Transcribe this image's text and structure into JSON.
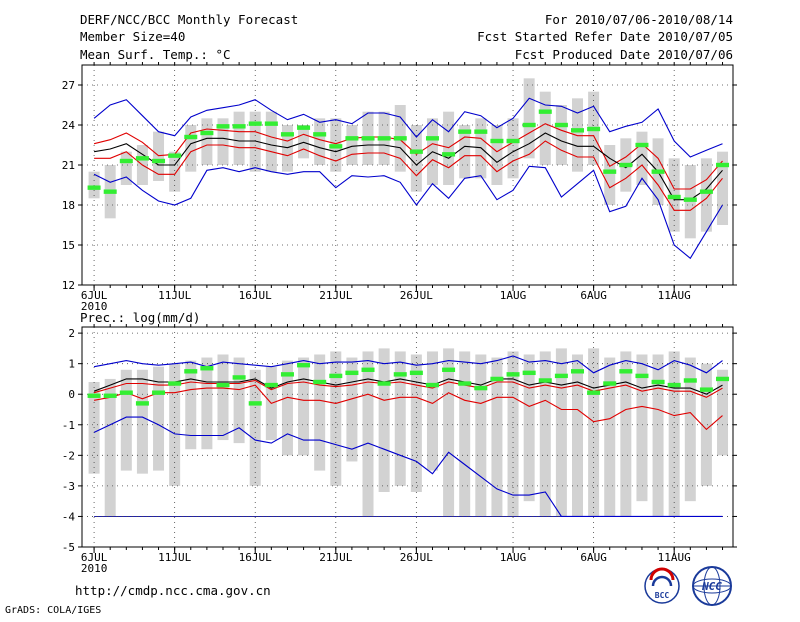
{
  "header": {
    "left": [
      "DERF/NCC/BCC Monthly Forecast",
      "Member Size=40",
      "Mean Surf. Temp.: °C"
    ],
    "right": [
      "For 2010/07/06-2010/08/14",
      "Fcst Started Refer Date 2010/07/05",
      "Fcst Produced Date 2010/07/06"
    ]
  },
  "footer": {
    "url": "http://cmdp.ncc.cma.gov.cn",
    "credit": "GrADS: COLA/IGES",
    "logo_left": "BCC",
    "logo_right": "NCC"
  },
  "colors": {
    "box": "#d2d2d2",
    "median": "#33ee33",
    "mean": "#000000",
    "inner": "#e00000",
    "outer": "#0000cc"
  },
  "chart_data": [
    {
      "type": "box",
      "title": "Mean Surf. Temp.: °C",
      "ylim": [
        12,
        28.5
      ],
      "yticks": [
        12,
        15,
        18,
        21,
        24,
        27
      ],
      "x": [
        "6JUL",
        "7JUL",
        "8JUL",
        "9JUL",
        "10JUL",
        "11JUL",
        "12JUL",
        "13JUL",
        "14JUL",
        "15JUL",
        "16JUL",
        "17JUL",
        "18JUL",
        "19JUL",
        "20JUL",
        "21JUL",
        "22JUL",
        "23JUL",
        "24JUL",
        "25JUL",
        "26JUL",
        "27JUL",
        "28JUL",
        "29JUL",
        "30JUL",
        "31JUL",
        "1AUG",
        "2AUG",
        "3AUG",
        "4AUG",
        "5AUG",
        "6AUG",
        "7AUG",
        "8AUG",
        "9AUG",
        "10AUG",
        "11AUG",
        "12AUG",
        "13AUG",
        "14AUG"
      ],
      "xtick_labels": [
        {
          "i": 0,
          "label": "6JUL",
          "sub": "2010"
        },
        {
          "i": 5,
          "label": "11JUL"
        },
        {
          "i": 10,
          "label": "16JUL"
        },
        {
          "i": 15,
          "label": "21JUL"
        },
        {
          "i": 20,
          "label": "26JUL"
        },
        {
          "i": 26,
          "label": "1AUG"
        },
        {
          "i": 31,
          "label": "6AUG"
        },
        {
          "i": 36,
          "label": "11AUG"
        }
      ],
      "box_low": [
        18.5,
        17.0,
        19.5,
        19.5,
        19.8,
        19.0,
        20.5,
        21.0,
        21.0,
        21.0,
        20.5,
        20.5,
        20.5,
        21.5,
        21.0,
        20.5,
        21.0,
        21.0,
        21.0,
        20.5,
        19.0,
        19.5,
        19.5,
        20.0,
        20.0,
        19.5,
        20.0,
        21.5,
        21.0,
        21.0,
        20.5,
        21.0,
        18.0,
        19.0,
        19.5,
        18.0,
        16.0,
        15.5,
        16.0,
        16.5
      ],
      "box_high": [
        20.5,
        21.0,
        22.0,
        22.5,
        23.5,
        22.0,
        24.0,
        24.5,
        24.5,
        25.0,
        25.0,
        25.0,
        24.0,
        24.0,
        24.5,
        24.5,
        24.0,
        25.0,
        25.0,
        25.5,
        24.0,
        24.5,
        25.0,
        24.0,
        24.5,
        24.0,
        24.5,
        27.5,
        26.5,
        25.5,
        26.0,
        26.5,
        22.5,
        23.0,
        23.5,
        23.0,
        21.5,
        21.0,
        21.5,
        22.0
      ],
      "median": [
        19.3,
        19.0,
        21.3,
        21.5,
        21.3,
        21.7,
        23.1,
        23.4,
        23.9,
        23.9,
        24.1,
        24.1,
        23.3,
        23.8,
        23.3,
        22.4,
        23.0,
        23.0,
        23.0,
        23.0,
        22.0,
        23.0,
        21.8,
        23.5,
        23.5,
        22.8,
        22.8,
        24.0,
        25.0,
        24.0,
        23.6,
        23.7,
        20.5,
        21.0,
        22.5,
        20.5,
        18.6,
        18.4,
        19.0,
        21.0
      ],
      "mean": [
        22.0,
        22.2,
        22.6,
        21.8,
        21.0,
        21.0,
        22.6,
        23.0,
        23.0,
        22.8,
        22.8,
        22.5,
        22.3,
        22.7,
        22.3,
        22.0,
        22.4,
        22.5,
        22.5,
        22.3,
        21.0,
        22.0,
        21.5,
        22.4,
        22.3,
        21.2,
        22.0,
        22.6,
        23.4,
        22.8,
        22.4,
        22.4,
        21.5,
        20.8,
        21.8,
        20.5,
        18.4,
        18.4,
        19.2,
        20.6
      ],
      "inner_low": [
        21.5,
        21.5,
        22.0,
        21.0,
        20.3,
        20.3,
        22.0,
        22.5,
        22.5,
        22.3,
        22.3,
        22.0,
        21.7,
        22.2,
        21.7,
        21.3,
        21.8,
        21.9,
        21.9,
        21.5,
        20.2,
        21.4,
        20.8,
        21.7,
        21.7,
        20.5,
        21.3,
        21.8,
        22.8,
        22.1,
        21.6,
        21.6,
        19.3,
        20.0,
        21.0,
        19.5,
        17.6,
        17.6,
        18.5,
        20.0
      ],
      "inner_high": [
        22.6,
        22.9,
        23.4,
        22.7,
        21.7,
        21.8,
        23.4,
        23.7,
        23.6,
        23.5,
        23.5,
        23.1,
        22.8,
        23.3,
        22.9,
        22.6,
        23.0,
        23.1,
        23.1,
        22.9,
        21.8,
        22.6,
        22.3,
        23.1,
        23.0,
        22.0,
        22.7,
        23.4,
        24.1,
        23.6,
        23.2,
        23.2,
        20.9,
        21.6,
        22.6,
        21.5,
        19.2,
        19.2,
        19.9,
        21.3
      ],
      "outer_low": [
        20.3,
        19.7,
        20.1,
        19.1,
        18.3,
        18.0,
        18.5,
        20.6,
        20.8,
        20.5,
        20.8,
        20.5,
        20.3,
        20.5,
        20.5,
        19.3,
        20.2,
        20.1,
        20.2,
        19.7,
        18.0,
        19.6,
        18.5,
        20.0,
        20.2,
        18.4,
        19.1,
        20.9,
        20.8,
        18.6,
        19.6,
        20.6,
        17.5,
        17.9,
        20.0,
        18.4,
        15.0,
        14.0,
        16.0,
        18.0
      ],
      "outer_high": [
        24.5,
        25.5,
        25.9,
        24.7,
        23.5,
        23.2,
        24.6,
        25.1,
        25.3,
        25.5,
        25.9,
        25.1,
        24.4,
        24.8,
        24.2,
        24.4,
        24.1,
        24.9,
        24.9,
        24.6,
        23.1,
        24.4,
        23.5,
        25.0,
        24.7,
        23.8,
        24.5,
        26.0,
        25.5,
        25.4,
        24.9,
        25.4,
        23.5,
        23.9,
        24.2,
        25.2,
        22.8,
        21.6,
        22.1,
        22.6
      ]
    },
    {
      "type": "box",
      "title": "Prec.: log(mm/d)",
      "ylim": [
        -5,
        2.2
      ],
      "yticks": [
        -5,
        -4,
        -3,
        -2,
        -1,
        0,
        1,
        2
      ],
      "x": [
        "6JUL",
        "7JUL",
        "8JUL",
        "9JUL",
        "10JUL",
        "11JUL",
        "12JUL",
        "13JUL",
        "14JUL",
        "15JUL",
        "16JUL",
        "17JUL",
        "18JUL",
        "19JUL",
        "20JUL",
        "21JUL",
        "22JUL",
        "23JUL",
        "24JUL",
        "25JUL",
        "26JUL",
        "27JUL",
        "28JUL",
        "29JUL",
        "30JUL",
        "31JUL",
        "1AUG",
        "2AUG",
        "3AUG",
        "4AUG",
        "5AUG",
        "6AUG",
        "7AUG",
        "8AUG",
        "9AUG",
        "10AUG",
        "11AUG",
        "12AUG",
        "13AUG",
        "14AUG"
      ],
      "xtick_labels": [
        {
          "i": 0,
          "label": "6JUL",
          "sub": "2010"
        },
        {
          "i": 5,
          "label": "11JUL"
        },
        {
          "i": 10,
          "label": "16JUL"
        },
        {
          "i": 15,
          "label": "21JUL"
        },
        {
          "i": 20,
          "label": "26JUL"
        },
        {
          "i": 26,
          "label": "1AUG"
        },
        {
          "i": 31,
          "label": "6AUG"
        },
        {
          "i": 36,
          "label": "11AUG"
        }
      ],
      "box_low": [
        -2.6,
        -4.0,
        -2.5,
        -2.6,
        -2.5,
        -3.0,
        -1.8,
        -1.8,
        -1.5,
        -1.6,
        -3.0,
        -1.5,
        -2.0,
        -2.0,
        -2.5,
        -3.0,
        -2.2,
        -4.0,
        -3.2,
        -3.0,
        -3.2,
        -2.5,
        -4.0,
        -4.0,
        -4.0,
        -4.0,
        -4.0,
        -3.5,
        -4.0,
        -4.0,
        -4.0,
        -4.0,
        -4.0,
        -4.0,
        -3.5,
        -4.0,
        -4.0,
        -3.5,
        -3.0,
        -2.0
      ],
      "box_high": [
        0.4,
        0.5,
        0.8,
        0.8,
        0.9,
        1.0,
        1.1,
        1.2,
        1.3,
        1.2,
        0.8,
        0.9,
        1.1,
        1.2,
        1.3,
        1.4,
        1.2,
        1.4,
        1.5,
        1.4,
        1.3,
        1.4,
        1.5,
        1.4,
        1.3,
        1.2,
        1.4,
        1.3,
        1.4,
        1.5,
        1.3,
        1.5,
        1.2,
        1.4,
        1.3,
        1.3,
        1.4,
        1.2,
        1.0,
        0.8
      ],
      "median": [
        -0.05,
        -0.05,
        0.05,
        -0.3,
        0.05,
        0.35,
        0.75,
        0.85,
        0.3,
        0.55,
        -0.3,
        0.3,
        0.65,
        0.95,
        0.4,
        0.6,
        0.7,
        0.8,
        0.35,
        0.65,
        0.7,
        0.3,
        0.8,
        0.35,
        0.2,
        0.5,
        0.65,
        0.7,
        0.45,
        0.6,
        0.75,
        0.05,
        0.35,
        0.75,
        0.6,
        0.4,
        0.3,
        0.45,
        0.15,
        0.5
      ],
      "mean": [
        0.1,
        0.3,
        0.5,
        0.5,
        0.4,
        0.4,
        0.5,
        0.4,
        0.4,
        0.4,
        0.5,
        0.2,
        0.4,
        0.5,
        0.4,
        0.3,
        0.4,
        0.5,
        0.4,
        0.5,
        0.4,
        0.3,
        0.5,
        0.4,
        0.3,
        0.5,
        0.5,
        0.3,
        0.4,
        0.3,
        0.4,
        0.2,
        0.3,
        0.4,
        0.2,
        0.3,
        0.2,
        0.2,
        0.0,
        0.3
      ],
      "inner_low": [
        -0.2,
        -0.1,
        0.05,
        -0.15,
        0.05,
        0.05,
        0.15,
        0.2,
        0.2,
        0.15,
        0.3,
        -0.3,
        -0.1,
        -0.2,
        -0.2,
        -0.3,
        -0.15,
        0.0,
        -0.2,
        -0.1,
        -0.1,
        -0.3,
        0.05,
        -0.2,
        -0.3,
        -0.1,
        -0.1,
        -0.4,
        -0.2,
        -0.5,
        -0.5,
        -0.9,
        -0.8,
        -0.5,
        -0.4,
        -0.5,
        -0.7,
        -0.6,
        -1.15,
        -0.7
      ],
      "inner_high": [
        0.05,
        0.2,
        0.35,
        0.35,
        0.3,
        0.3,
        0.4,
        0.35,
        0.35,
        0.35,
        0.45,
        0.15,
        0.35,
        0.4,
        0.3,
        0.25,
        0.3,
        0.4,
        0.35,
        0.4,
        0.3,
        0.2,
        0.4,
        0.3,
        0.2,
        0.4,
        0.4,
        0.2,
        0.3,
        0.2,
        0.3,
        0.1,
        0.2,
        0.3,
        0.1,
        0.2,
        0.1,
        0.1,
        -0.1,
        0.2
      ],
      "outer_low": [
        -1.25,
        -1.0,
        -0.75,
        -0.75,
        -1.0,
        -1.3,
        -1.35,
        -1.35,
        -1.35,
        -1.1,
        -1.5,
        -1.6,
        -1.3,
        -1.5,
        -1.5,
        -1.65,
        -1.8,
        -1.6,
        -1.8,
        -2.0,
        -2.2,
        -2.6,
        -1.9,
        -2.3,
        -2.7,
        -3.1,
        -3.3,
        -3.3,
        -3.2,
        -4.0,
        -4.0,
        -4.0,
        -4.0,
        -4.0,
        -4.0,
        -4.0,
        -4.0,
        -4.0,
        -4.0,
        -4.0
      ],
      "outer_high": [
        0.9,
        1.0,
        1.1,
        1.0,
        0.95,
        1.0,
        1.05,
        0.9,
        1.05,
        1.0,
        0.95,
        0.9,
        1.0,
        1.1,
        1.0,
        1.05,
        1.05,
        1.1,
        1.0,
        1.05,
        0.95,
        1.0,
        1.1,
        1.05,
        1.0,
        1.1,
        1.25,
        1.05,
        1.1,
        1.0,
        1.1,
        0.7,
        0.95,
        1.1,
        1.0,
        0.8,
        1.1,
        0.95,
        0.7,
        1.1
      ],
      "floor": -4
    }
  ]
}
